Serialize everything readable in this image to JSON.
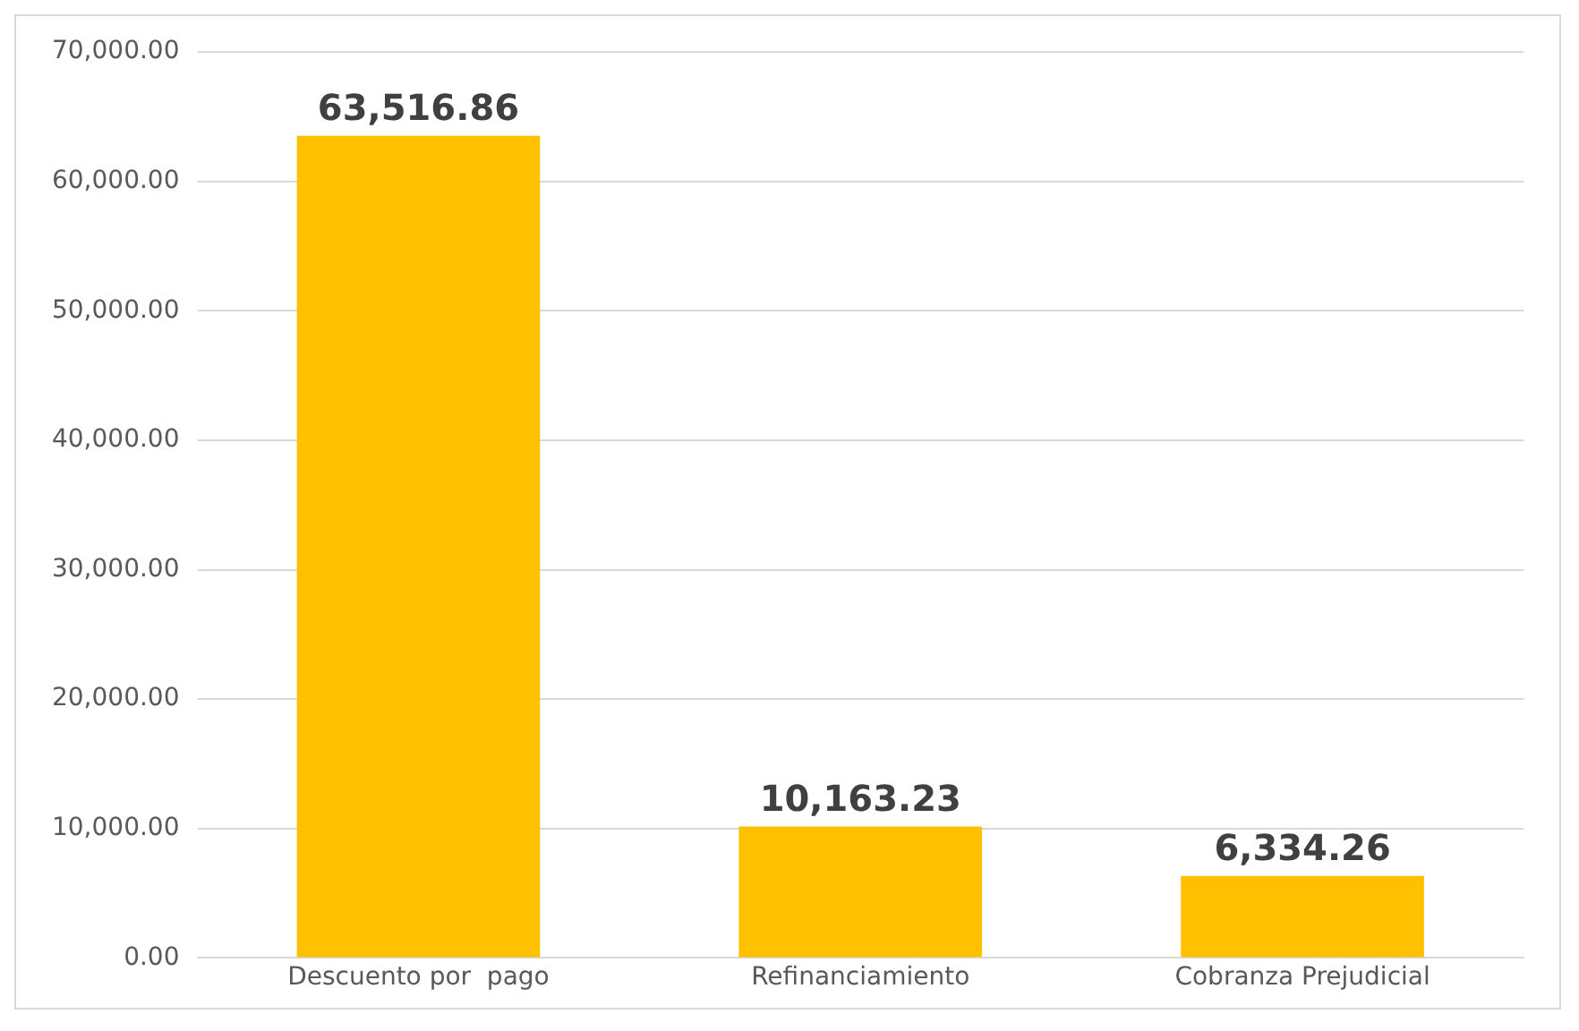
{
  "chart_data": {
    "type": "bar",
    "categories": [
      "Descuento por  pago",
      "Refinanciamiento",
      "Cobranza Prejudicial"
    ],
    "values": [
      63516.86,
      10163.23,
      6334.26
    ],
    "value_labels": [
      "63,516.86",
      "10,163.23",
      "6,334.26"
    ],
    "color": "#ffc000",
    "ylim": [
      0,
      70000
    ],
    "yticks": [
      {
        "value": 0,
        "label": "0.00"
      },
      {
        "value": 10000,
        "label": "10,000.00"
      },
      {
        "value": 20000,
        "label": "20,000.00"
      },
      {
        "value": 30000,
        "label": "30,000.00"
      },
      {
        "value": 40000,
        "label": "40,000.00"
      },
      {
        "value": 50000,
        "label": "50,000.00"
      },
      {
        "value": 60000,
        "label": "60,000.00"
      },
      {
        "value": 70000,
        "label": "70,000.00"
      }
    ],
    "grid": "y",
    "legend": false
  }
}
